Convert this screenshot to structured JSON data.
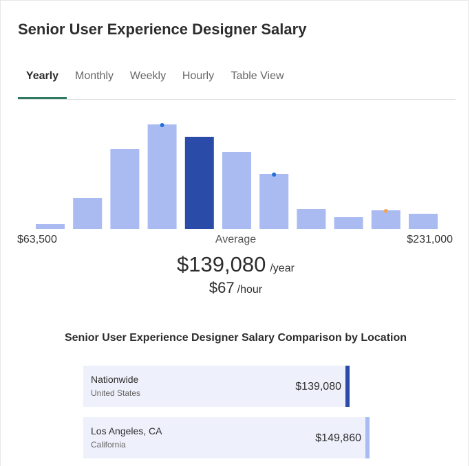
{
  "title": "Senior User Experience Designer Salary",
  "tabs": [
    {
      "label": "Yearly",
      "active": true
    },
    {
      "label": "Monthly",
      "active": false
    },
    {
      "label": "Weekly",
      "active": false
    },
    {
      "label": "Hourly",
      "active": false
    },
    {
      "label": "Table View",
      "active": false
    }
  ],
  "colors": {
    "bar": "#aabbf2",
    "bar_highlight": "#2a4ca8",
    "marker_blue": "#1f6fd6",
    "marker_orange": "#f2a55a",
    "tab_underline": "#2d7a5f"
  },
  "chart_data": {
    "type": "bar",
    "categories": [
      "1",
      "2",
      "3",
      "4",
      "5",
      "6",
      "7",
      "8",
      "9",
      "10",
      "11"
    ],
    "values": [
      7,
      45,
      116,
      152,
      134,
      112,
      80,
      29,
      17,
      27,
      22
    ],
    "highlight_index": 4,
    "markers": [
      {
        "bin_index": 3,
        "color": "blue"
      },
      {
        "bin_index": 6,
        "color": "blue"
      },
      {
        "bin_index": 9,
        "color": "orange"
      }
    ],
    "range_min_label": "$63,500",
    "range_max_label": "$231,000",
    "center_label": "Average",
    "ylim": [
      0,
      152
    ]
  },
  "summary": {
    "yearly_amount": "$139,080",
    "yearly_unit": "/year",
    "hourly_amount": "$67",
    "hourly_unit": "/hour"
  },
  "comparison": {
    "title": "Senior User Experience Designer Salary Comparison by Location",
    "rows": [
      {
        "name": "Nationwide",
        "sub": "United States",
        "value": "$139,080",
        "accent": "#2a4ca8"
      },
      {
        "name": "Los Angeles, CA",
        "sub": "California",
        "value": "$149,860",
        "accent": "#aabbf2"
      }
    ]
  }
}
